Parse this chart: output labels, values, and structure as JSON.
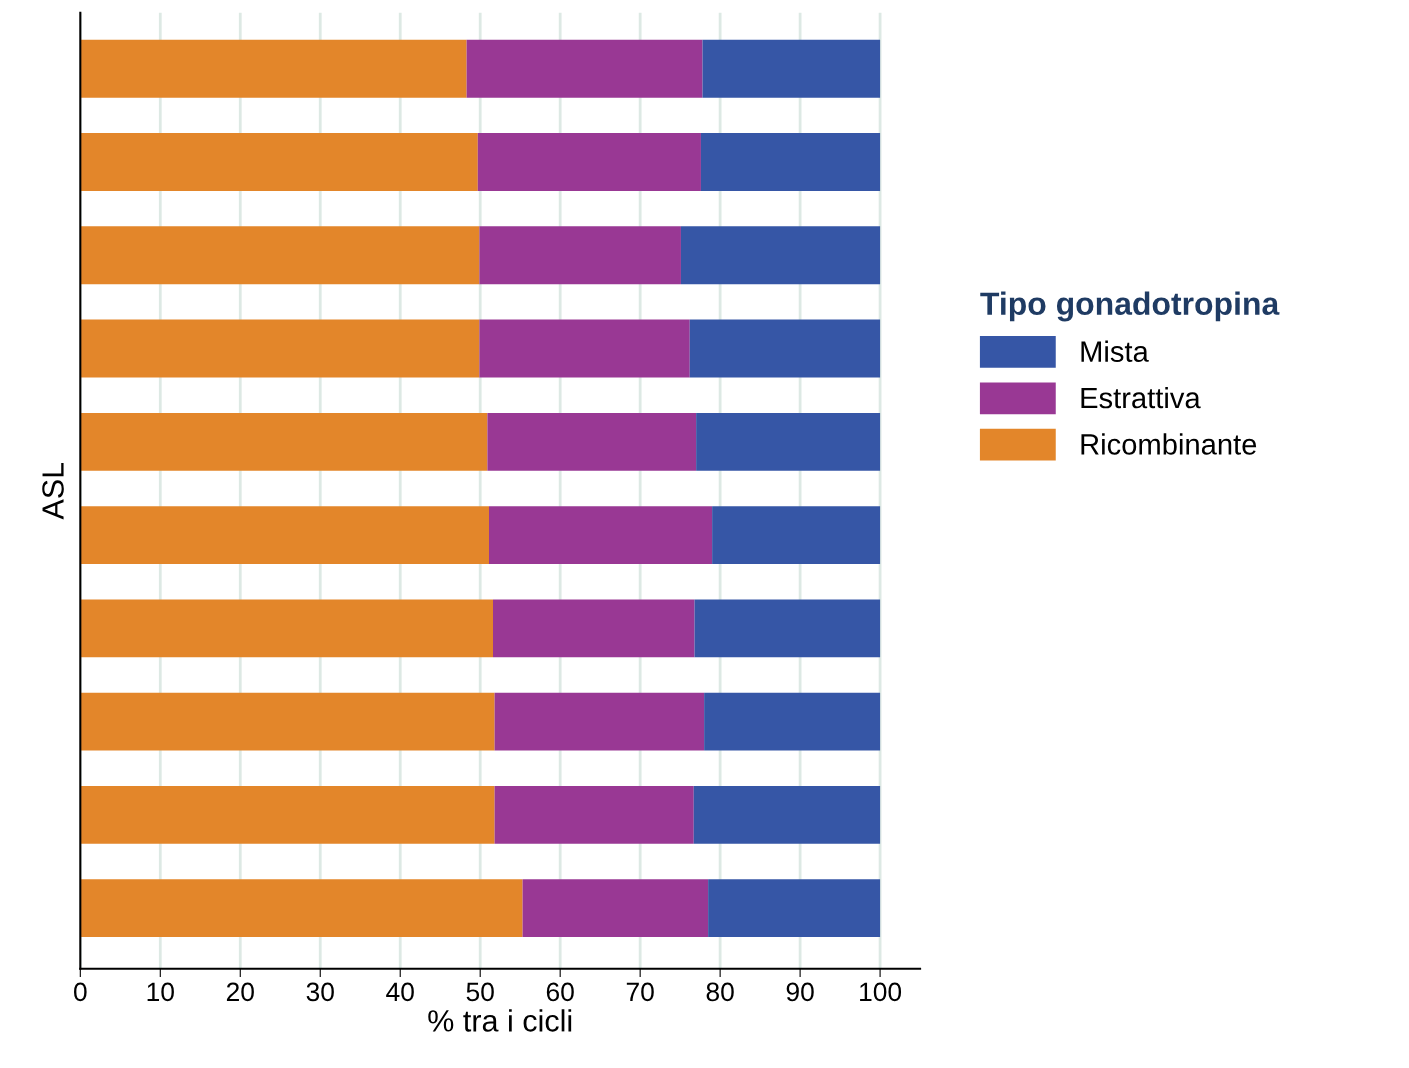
{
  "chart_data": {
    "type": "bar",
    "orientation": "horizontal",
    "stacked": true,
    "ylabel": "ASL",
    "xlabel": "% tra i cicli",
    "legend_title": "Tipo gonadotropina",
    "legend": "right",
    "grid": "x",
    "categories": [
      null,
      null,
      null,
      null,
      null,
      null,
      null,
      null,
      null,
      null
    ],
    "xlim": [
      0,
      105
    ],
    "xticks": [
      0,
      10,
      20,
      30,
      40,
      50,
      60,
      70,
      80,
      90,
      100
    ],
    "series": [
      {
        "name": "Ricombinante",
        "color": "#e3862a",
        "values": [
          48.3,
          49.7,
          49.9,
          49.9,
          50.9,
          51.1,
          51.6,
          51.8,
          51.8,
          55.3
        ]
      },
      {
        "name": "Estrattiva",
        "color": "#993894",
        "values": [
          29.5,
          27.9,
          25.2,
          26.3,
          26.1,
          27.9,
          25.2,
          26.2,
          24.9,
          23.2
        ]
      },
      {
        "name": "Mista",
        "color": "#3656a6",
        "values": [
          22.2,
          22.4,
          24.9,
          23.8,
          23.0,
          21.0,
          23.2,
          22.0,
          23.3,
          21.5
        ]
      }
    ]
  }
}
